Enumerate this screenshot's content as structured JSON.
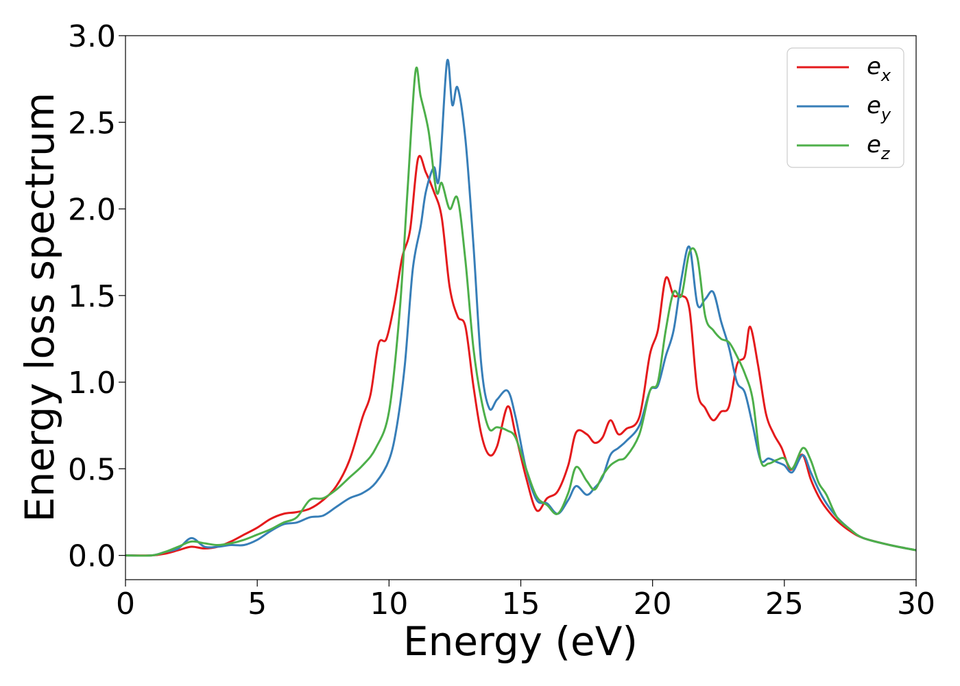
{
  "chart_data": {
    "type": "line",
    "xlabel": "Energy (eV)",
    "ylabel": "Energy loss spectrum",
    "xlim": [
      0,
      30
    ],
    "ylim": [
      -0.14,
      3.0
    ],
    "xticks": [
      "0",
      "5",
      "10",
      "15",
      "20",
      "25",
      "30"
    ],
    "yticks": [
      "0.0",
      "0.5",
      "1.0",
      "1.5",
      "2.0",
      "2.5",
      "3.0"
    ],
    "grid": false,
    "legend_position": "top-right",
    "series": [
      {
        "name": "e",
        "subscript": "x",
        "color": "#e41a1c",
        "x": [
          0,
          1,
          1.5,
          2,
          2.5,
          3,
          3.5,
          4,
          4.5,
          5,
          5.5,
          6,
          6.5,
          7,
          7.5,
          8,
          8.5,
          9,
          9.3,
          9.6,
          9.9,
          10.2,
          10.5,
          10.8,
          11.1,
          11.4,
          11.7,
          12.0,
          12.3,
          12.6,
          12.9,
          13.2,
          13.5,
          13.8,
          14.1,
          14.5,
          14.8,
          15.2,
          15.6,
          16.0,
          16.4,
          16.8,
          17.1,
          17.5,
          17.8,
          18.1,
          18.4,
          18.7,
          19.0,
          19.5,
          19.9,
          20.2,
          20.5,
          20.8,
          21.1,
          21.4,
          21.7,
          22.0,
          22.3,
          22.6,
          22.9,
          23.2,
          23.5,
          23.7,
          24.0,
          24.3,
          24.6,
          24.9,
          25.2,
          25.4,
          25.7,
          26.0,
          26.3,
          26.6,
          27.0,
          27.5,
          28.0,
          29.0,
          30.0
        ],
        "values": [
          0.0,
          0.0,
          0.01,
          0.03,
          0.05,
          0.04,
          0.05,
          0.08,
          0.12,
          0.16,
          0.21,
          0.24,
          0.25,
          0.27,
          0.32,
          0.4,
          0.55,
          0.8,
          0.93,
          1.22,
          1.25,
          1.45,
          1.72,
          1.88,
          2.29,
          2.21,
          2.1,
          1.95,
          1.55,
          1.38,
          1.32,
          0.98,
          0.7,
          0.58,
          0.63,
          0.86,
          0.7,
          0.45,
          0.26,
          0.33,
          0.37,
          0.52,
          0.71,
          0.7,
          0.65,
          0.68,
          0.78,
          0.7,
          0.73,
          0.8,
          1.16,
          1.3,
          1.6,
          1.5,
          1.5,
          1.42,
          0.95,
          0.85,
          0.78,
          0.83,
          0.86,
          1.1,
          1.15,
          1.32,
          1.1,
          0.82,
          0.7,
          0.62,
          0.5,
          0.52,
          0.58,
          0.44,
          0.34,
          0.27,
          0.2,
          0.14,
          0.1,
          0.06,
          0.03
        ]
      },
      {
        "name": "e",
        "subscript": "y",
        "color": "#377eb8",
        "x": [
          0,
          1,
          1.5,
          2,
          2.5,
          3,
          3.5,
          4,
          4.5,
          5,
          5.5,
          6,
          6.5,
          7,
          7.5,
          8,
          8.5,
          9,
          9.5,
          10.0,
          10.3,
          10.6,
          10.9,
          11.2,
          11.4,
          11.7,
          11.9,
          12.2,
          12.4,
          12.6,
          12.9,
          13.2,
          13.5,
          13.8,
          14.1,
          14.5,
          14.8,
          15.2,
          15.6,
          16.0,
          16.4,
          16.8,
          17.1,
          17.5,
          17.8,
          18.1,
          18.4,
          18.7,
          19.0,
          19.5,
          19.9,
          20.2,
          20.5,
          20.8,
          21.1,
          21.4,
          21.7,
          22.0,
          22.3,
          22.6,
          22.9,
          23.2,
          23.5,
          23.8,
          24.1,
          24.4,
          24.7,
          25.0,
          25.3,
          25.7,
          26.0,
          26.3,
          26.6,
          27.0,
          27.5,
          28.0,
          29.0,
          30.0
        ],
        "values": [
          0.0,
          0.0,
          0.02,
          0.04,
          0.1,
          0.05,
          0.05,
          0.06,
          0.06,
          0.09,
          0.14,
          0.18,
          0.19,
          0.22,
          0.23,
          0.28,
          0.33,
          0.36,
          0.42,
          0.55,
          0.75,
          1.1,
          1.65,
          1.9,
          2.1,
          2.24,
          2.18,
          2.85,
          2.6,
          2.7,
          2.4,
          1.8,
          1.1,
          0.85,
          0.9,
          0.95,
          0.8,
          0.5,
          0.32,
          0.3,
          0.24,
          0.32,
          0.4,
          0.35,
          0.39,
          0.45,
          0.58,
          0.62,
          0.66,
          0.75,
          0.95,
          0.98,
          1.15,
          1.3,
          1.6,
          1.78,
          1.45,
          1.48,
          1.52,
          1.35,
          1.2,
          1.0,
          0.94,
          0.75,
          0.55,
          0.56,
          0.54,
          0.52,
          0.48,
          0.58,
          0.48,
          0.38,
          0.3,
          0.22,
          0.15,
          0.1,
          0.06,
          0.03
        ]
      },
      {
        "name": "e",
        "subscript": "z",
        "color": "#4daf4a",
        "x": [
          0,
          1,
          1.5,
          2,
          2.5,
          3,
          3.5,
          4,
          4.5,
          5,
          5.5,
          6,
          6.5,
          7,
          7.5,
          8,
          8.5,
          9,
          9.5,
          10.0,
          10.4,
          10.7,
          11.0,
          11.2,
          11.5,
          11.8,
          12.0,
          12.3,
          12.6,
          12.9,
          13.2,
          13.5,
          13.8,
          14.1,
          14.5,
          14.8,
          15.2,
          15.6,
          16.0,
          16.4,
          16.8,
          17.1,
          17.5,
          17.8,
          18.1,
          18.4,
          18.7,
          19.0,
          19.5,
          19.9,
          20.2,
          20.5,
          20.8,
          21.1,
          21.4,
          21.7,
          22.0,
          22.3,
          22.6,
          22.9,
          23.2,
          23.5,
          23.8,
          24.1,
          24.4,
          24.7,
          25.0,
          25.3,
          25.7,
          26.0,
          26.3,
          26.6,
          27.0,
          27.5,
          28.0,
          29.0,
          30.0
        ],
        "values": [
          0.0,
          0.0,
          0.02,
          0.05,
          0.08,
          0.07,
          0.06,
          0.07,
          0.09,
          0.12,
          0.15,
          0.19,
          0.22,
          0.32,
          0.33,
          0.38,
          0.45,
          0.52,
          0.62,
          0.83,
          1.4,
          2.1,
          2.79,
          2.65,
          2.45,
          2.1,
          2.15,
          2.0,
          2.06,
          1.7,
          1.2,
          0.9,
          0.73,
          0.74,
          0.72,
          0.68,
          0.5,
          0.34,
          0.29,
          0.24,
          0.36,
          0.51,
          0.43,
          0.38,
          0.46,
          0.52,
          0.55,
          0.57,
          0.7,
          0.95,
          1.0,
          1.3,
          1.52,
          1.5,
          1.75,
          1.72,
          1.38,
          1.3,
          1.25,
          1.23,
          1.15,
          1.05,
          0.9,
          0.55,
          0.53,
          0.55,
          0.56,
          0.5,
          0.62,
          0.55,
          0.42,
          0.35,
          0.22,
          0.15,
          0.1,
          0.06,
          0.03
        ]
      }
    ]
  }
}
